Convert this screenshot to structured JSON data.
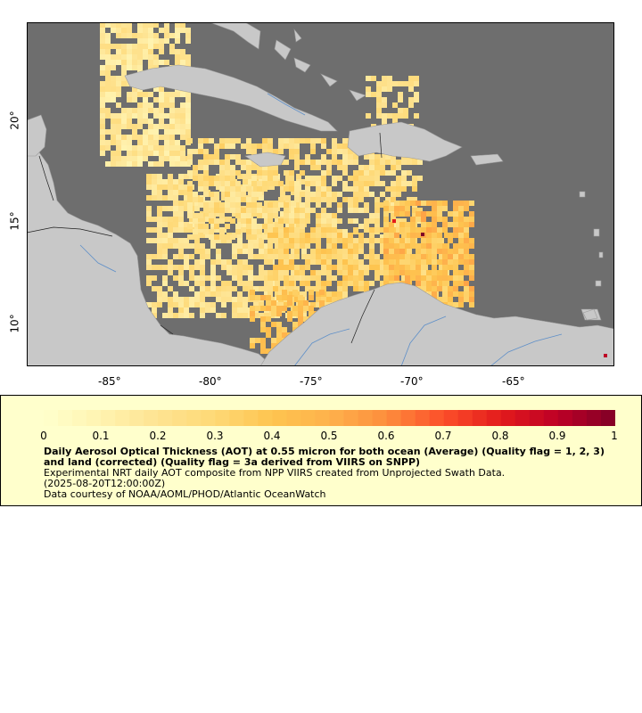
{
  "map": {
    "x_ticks": [
      "-85°",
      "-80°",
      "-75°",
      "-70°",
      "-65°"
    ],
    "y_ticks": [
      "20°",
      "15°",
      "10°"
    ],
    "colors": {
      "ocean": "#6e6e6e",
      "land": "#c8c8c8",
      "rivers": "#5e8fc8",
      "borders": "#202020"
    }
  },
  "legend": {
    "tick_labels": [
      "0",
      "0.1",
      "0.2",
      "0.3",
      "0.4",
      "0.5",
      "0.6",
      "0.7",
      "0.8",
      "0.9",
      "1"
    ],
    "title": "Daily Aerosol Optical Thickness (AOT) at 0.55 micron for both ocean (Average) (Quality flag = 1, 2, 3) and land (corrected) (Quality flag = 3a derived from VIIRS on SNPP)",
    "subtitle": "Experimental NRT daily AOT composite from NPP VIIRS created from Unprojected Swath Data.",
    "timestamp": "(2025-08-20T12:00:00Z)",
    "credit": "Data courtesy of NOAA/AOML/PHOD/Atlantic OceanWatch",
    "color_stops": [
      "#ffffcc",
      "#fff3b0",
      "#fee391",
      "#fed976",
      "#fec44f",
      "#feb24c",
      "#fd8d3c",
      "#fc4e2a",
      "#e31a1c",
      "#bd0026",
      "#800026"
    ]
  }
}
